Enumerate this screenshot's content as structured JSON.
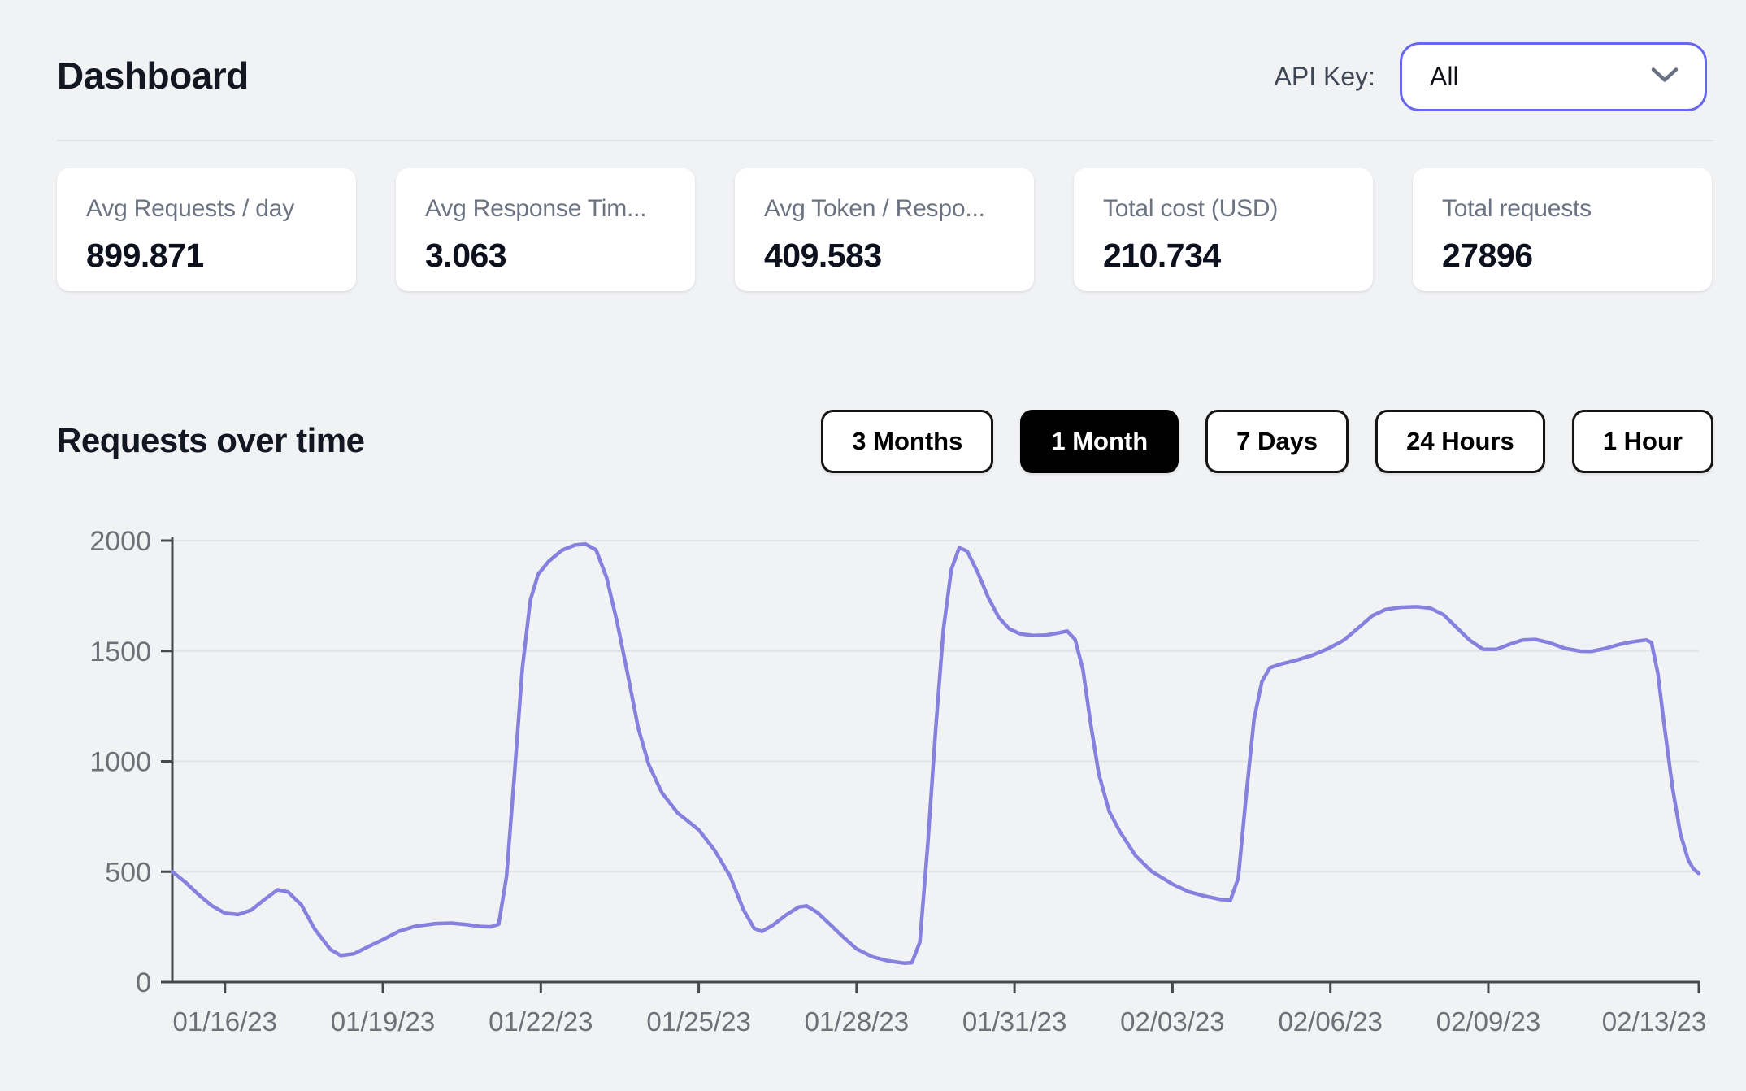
{
  "page": {
    "title": "Dashboard"
  },
  "header": {
    "api_key_label": "API Key:",
    "api_key_value": "All",
    "select_border_color": "#6866ee",
    "chevron_icon": "chevron-down"
  },
  "stats": [
    {
      "label": "Avg Requests / day",
      "value": "899.871"
    },
    {
      "label": "Avg Response Tim...",
      "value": "3.063"
    },
    {
      "label": "Avg Token / Respo...",
      "value": "409.583"
    },
    {
      "label": "Total cost (USD)",
      "value": "210.734"
    },
    {
      "label": "Total requests",
      "value": "27896"
    }
  ],
  "section": {
    "title": "Requests over time"
  },
  "time_range_buttons": [
    {
      "label": "3 Months",
      "selected": false
    },
    {
      "label": "1 Month",
      "selected": true
    },
    {
      "label": "7 Days",
      "selected": false
    },
    {
      "label": "24 Hours",
      "selected": false
    },
    {
      "label": "1 Hour",
      "selected": false
    }
  ],
  "colors": {
    "page_bg": "#f1f2f4",
    "card_bg": "#ffffff",
    "accent_indigo": "#6866ee",
    "selected_button_bg": "#000000",
    "line": "#8681de",
    "grid": "#e2e3e7",
    "axis": "#47484d",
    "tick_label": "#6d7076"
  },
  "chart_data": {
    "type": "line",
    "title": "Requests over time",
    "xlabel": "",
    "ylabel": "",
    "ylim": [
      0,
      2000
    ],
    "y_ticks": [
      0,
      500,
      1000,
      1500,
      2000
    ],
    "grid": true,
    "legend": false,
    "x_domain_days": [
      0,
      29
    ],
    "x_ticks": [
      {
        "day": 1,
        "label": "01/16/23"
      },
      {
        "day": 4,
        "label": "01/19/23"
      },
      {
        "day": 7,
        "label": "01/22/23"
      },
      {
        "day": 10,
        "label": "01/25/23"
      },
      {
        "day": 13,
        "label": "01/28/23"
      },
      {
        "day": 16,
        "label": "01/31/23"
      },
      {
        "day": 19,
        "label": "02/03/23"
      },
      {
        "day": 22,
        "label": "02/06/23"
      },
      {
        "day": 25,
        "label": "02/09/23"
      },
      {
        "day": 29,
        "label": "02/13/23",
        "dx": -55
      }
    ],
    "series_name": "Requests",
    "points": [
      [
        0,
        500
      ],
      [
        0.25,
        452
      ],
      [
        0.5,
        396
      ],
      [
        0.75,
        346
      ],
      [
        1,
        312
      ],
      [
        1.25,
        306
      ],
      [
        1.5,
        326
      ],
      [
        1.75,
        374
      ],
      [
        2,
        418
      ],
      [
        2.2,
        408
      ],
      [
        2.45,
        350
      ],
      [
        2.7,
        242
      ],
      [
        3,
        148
      ],
      [
        3.2,
        120
      ],
      [
        3.45,
        128
      ],
      [
        3.7,
        158
      ],
      [
        4,
        192
      ],
      [
        4.3,
        230
      ],
      [
        4.6,
        252
      ],
      [
        5,
        265
      ],
      [
        5.3,
        267
      ],
      [
        5.6,
        260
      ],
      [
        5.85,
        252
      ],
      [
        6.05,
        250
      ],
      [
        6.2,
        262
      ],
      [
        6.35,
        480
      ],
      [
        6.5,
        940
      ],
      [
        6.65,
        1420
      ],
      [
        6.8,
        1730
      ],
      [
        6.95,
        1848
      ],
      [
        7.15,
        1906
      ],
      [
        7.4,
        1956
      ],
      [
        7.65,
        1980
      ],
      [
        7.85,
        1984
      ],
      [
        8.05,
        1958
      ],
      [
        8.25,
        1832
      ],
      [
        8.45,
        1630
      ],
      [
        8.65,
        1395
      ],
      [
        8.85,
        1152
      ],
      [
        9.05,
        985
      ],
      [
        9.3,
        858
      ],
      [
        9.6,
        766
      ],
      [
        10,
        690
      ],
      [
        10.3,
        598
      ],
      [
        10.6,
        478
      ],
      [
        10.85,
        328
      ],
      [
        11.05,
        244
      ],
      [
        11.2,
        230
      ],
      [
        11.4,
        256
      ],
      [
        11.65,
        302
      ],
      [
        11.9,
        340
      ],
      [
        12.05,
        345
      ],
      [
        12.25,
        316
      ],
      [
        12.5,
        260
      ],
      [
        12.75,
        203
      ],
      [
        13,
        150
      ],
      [
        13.3,
        114
      ],
      [
        13.6,
        96
      ],
      [
        13.9,
        86
      ],
      [
        14.05,
        88
      ],
      [
        14.2,
        180
      ],
      [
        14.35,
        620
      ],
      [
        14.5,
        1140
      ],
      [
        14.65,
        1600
      ],
      [
        14.8,
        1870
      ],
      [
        14.95,
        1968
      ],
      [
        15.1,
        1952
      ],
      [
        15.3,
        1856
      ],
      [
        15.5,
        1742
      ],
      [
        15.7,
        1652
      ],
      [
        15.9,
        1600
      ],
      [
        16.1,
        1578
      ],
      [
        16.35,
        1570
      ],
      [
        16.6,
        1572
      ],
      [
        16.8,
        1580
      ],
      [
        17,
        1590
      ],
      [
        17.15,
        1552
      ],
      [
        17.3,
        1415
      ],
      [
        17.45,
        1165
      ],
      [
        17.6,
        942
      ],
      [
        17.8,
        772
      ],
      [
        18,
        682
      ],
      [
        18.3,
        572
      ],
      [
        18.6,
        502
      ],
      [
        19,
        444
      ],
      [
        19.3,
        410
      ],
      [
        19.6,
        390
      ],
      [
        19.9,
        375
      ],
      [
        20.1,
        370
      ],
      [
        20.25,
        472
      ],
      [
        20.4,
        845
      ],
      [
        20.55,
        1192
      ],
      [
        20.7,
        1362
      ],
      [
        20.85,
        1424
      ],
      [
        21.05,
        1440
      ],
      [
        21.35,
        1458
      ],
      [
        21.65,
        1480
      ],
      [
        21.95,
        1510
      ],
      [
        22.25,
        1548
      ],
      [
        22.55,
        1608
      ],
      [
        22.8,
        1660
      ],
      [
        23.05,
        1688
      ],
      [
        23.35,
        1698
      ],
      [
        23.65,
        1700
      ],
      [
        23.9,
        1694
      ],
      [
        24.15,
        1664
      ],
      [
        24.4,
        1606
      ],
      [
        24.65,
        1548
      ],
      [
        24.9,
        1508
      ],
      [
        25.15,
        1507
      ],
      [
        25.4,
        1530
      ],
      [
        25.65,
        1550
      ],
      [
        25.9,
        1552
      ],
      [
        26.15,
        1538
      ],
      [
        26.45,
        1512
      ],
      [
        26.75,
        1499
      ],
      [
        26.95,
        1498
      ],
      [
        27.2,
        1510
      ],
      [
        27.5,
        1530
      ],
      [
        27.75,
        1542
      ],
      [
        28,
        1550
      ],
      [
        28.1,
        1538
      ],
      [
        28.22,
        1400
      ],
      [
        28.35,
        1150
      ],
      [
        28.5,
        880
      ],
      [
        28.65,
        672
      ],
      [
        28.8,
        552
      ],
      [
        28.9,
        512
      ],
      [
        29,
        492
      ]
    ]
  }
}
